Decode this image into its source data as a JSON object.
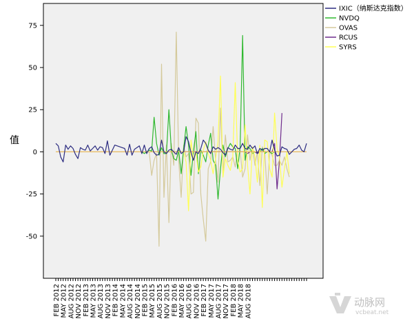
{
  "chart_data": {
    "type": "line",
    "ylabel": "值",
    "ylim": [
      -75,
      88
    ],
    "yticks": [
      75,
      50,
      25,
      0,
      -25,
      -50
    ],
    "x_tick_labels": [
      "FEB 2012",
      "MAY 2012",
      "AUG 2012",
      "NOV 2012",
      "FEB 2013",
      "MAY 2013",
      "AUG 2013",
      "NOV 2013",
      "FEB 2014",
      "MAY 2014",
      "AUG 2014",
      "NOV 2014",
      "FEB 2015",
      "MAY 2015",
      "AUG 2015",
      "NOV 2015",
      "FEB 2016",
      "MAY 2016",
      "AUG 2016",
      "NOV 2016",
      "FEB 2017",
      "MAY 2017",
      "AUG 2017",
      "NOV 2017",
      "FEB 2018",
      "MAY 2018",
      "AUG 2018"
    ],
    "x_start": "2012-02",
    "grid": false,
    "legend_position": "right",
    "background": "#f0f0f0",
    "reference_line": {
      "y": 0,
      "color": "#e8b95c"
    },
    "series": [
      {
        "name": "IXIC（纳斯达克指数）",
        "color": "#2b2b80",
        "start": "2012-02",
        "values": [
          5,
          3.5,
          -3,
          -6,
          4,
          1.5,
          3.5,
          2,
          -1.5,
          -4,
          2.5,
          1.5,
          1,
          4,
          0.5,
          2,
          3.5,
          1,
          3,
          2.5,
          -1,
          6.5,
          -2,
          1,
          4,
          3.5,
          3,
          2.5,
          2,
          -2,
          4.5,
          -2,
          1.5,
          2.5,
          3.5,
          -1,
          4,
          -1,
          2,
          3,
          -0.5,
          -2,
          -1.5,
          7,
          0,
          -1,
          1,
          1.5,
          0,
          -1.5,
          2.5,
          -1,
          0,
          9,
          6,
          -0.5,
          -5,
          0,
          -1,
          2,
          7,
          5,
          1,
          -1,
          3,
          1.5,
          2.5,
          1.5,
          -0.5,
          -2,
          2.5,
          1.5,
          1,
          4,
          2,
          2,
          5,
          2,
          1.5,
          4,
          2,
          3.5,
          -1,
          2,
          1,
          2,
          2,
          0,
          7,
          1,
          -2.5,
          -2,
          3,
          2,
          1.5,
          -1.5,
          0,
          1.5,
          2,
          4,
          1,
          0,
          5
        ]
      },
      {
        "name": "NVDQ",
        "color": "#2eb82e",
        "start": "2015-01",
        "values": [
          0,
          -1,
          0,
          1,
          0.5,
          20.5,
          5,
          -2,
          2.5,
          -1,
          -1,
          25,
          1,
          -4,
          -5,
          1,
          -13,
          2,
          15,
          4,
          -14,
          0,
          12,
          -13,
          1,
          -2,
          -6,
          4,
          11,
          -5,
          -8,
          -28,
          -10,
          4,
          -3,
          2,
          5,
          3,
          2,
          -10,
          3,
          69,
          -5,
          3,
          2,
          -1,
          0,
          -1,
          0,
          2,
          -1,
          0,
          0,
          -1,
          0,
          0
        ]
      },
      {
        "name": "OVAS",
        "color": "#d4c99a",
        "start": "2015-04",
        "values": [
          0,
          -14,
          -5,
          -1,
          -56,
          52,
          -27,
          4,
          -42,
          5,
          -8,
          71,
          -5,
          -27,
          4,
          -3,
          -1,
          -25,
          -24,
          20,
          17,
          -25,
          -40,
          -53,
          -10,
          -6,
          15,
          -5,
          -18,
          26,
          -14,
          10,
          -6,
          -5,
          -3,
          -9,
          2,
          1,
          -15,
          -10,
          10,
          -5,
          3,
          -8,
          0,
          -20,
          3,
          0,
          -25,
          0,
          -2,
          -8,
          -8,
          -5,
          -8,
          -3,
          -10,
          -15
        ]
      },
      {
        "name": "RCUS",
        "color": "#6e2b8c",
        "start": "2016-06",
        "values": [
          0,
          0,
          0,
          0,
          0,
          0,
          0,
          0,
          0,
          0,
          0,
          0,
          0,
          0,
          0,
          0,
          0,
          0,
          0,
          0,
          0,
          0,
          0,
          0,
          0,
          0,
          -1,
          0,
          0,
          0,
          -1,
          0,
          0,
          0,
          0,
          0,
          0,
          5,
          -22,
          -5,
          23
        ]
      },
      {
        "name": "SYRS",
        "color": "#ffff55",
        "start": "2016-06",
        "values": [
          0,
          -6,
          -35,
          7,
          -5,
          0,
          -12,
          -9,
          1,
          6,
          -1,
          -5,
          -13,
          -4,
          6,
          45,
          -15,
          -4,
          -8,
          -11,
          -3,
          41,
          -5,
          -12,
          -10,
          16,
          -8,
          -25,
          3,
          -3,
          -18,
          4,
          -33,
          7,
          6,
          -10,
          -15,
          23,
          2,
          -3,
          -21,
          -10,
          0,
          -13
        ]
      }
    ]
  },
  "watermark": {
    "logo_text": "动脉网",
    "sub_text": "vcbeat.net"
  }
}
